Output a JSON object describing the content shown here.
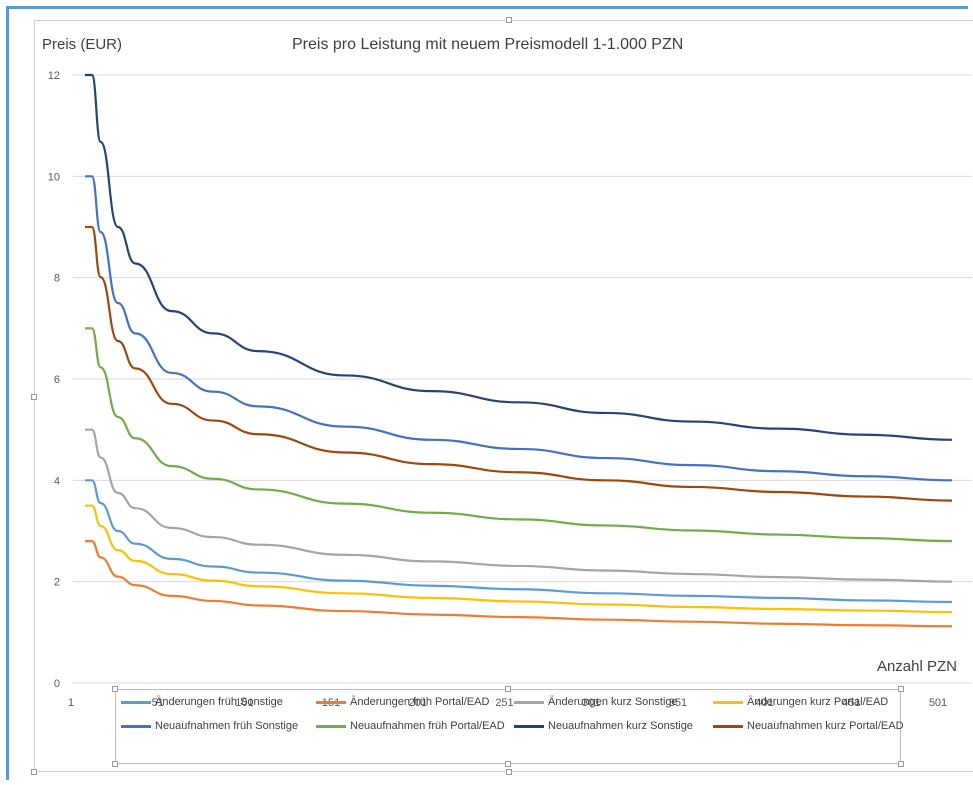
{
  "chart_data": {
    "type": "line",
    "title": "Preis pro Leistung mit neuem Preismodell 1-1.000 PZN",
    "ylabel": "Preis (EUR)",
    "xlabel": "Anzahl PZN",
    "xlim": [
      1,
      501
    ],
    "ylim": [
      0,
      12
    ],
    "x_ticks": [
      "1",
      "51",
      "101",
      "151",
      "201",
      "251",
      "301",
      "351",
      "401",
      "451",
      "501"
    ],
    "y_ticks": [
      "0",
      "2",
      "4",
      "6",
      "8",
      "10",
      "12"
    ],
    "grid": "horizontal",
    "legend_position": "bottom",
    "x": [
      1,
      5,
      10,
      20,
      30,
      51,
      75,
      101,
      151,
      201,
      251,
      301,
      351,
      401,
      451,
      501
    ],
    "series": [
      {
        "name": "Änderungen früh Sonstige",
        "color": "#5b9bd5",
        "values": [
          4.0,
          4.0,
          3.55,
          3.0,
          2.75,
          2.45,
          2.3,
          2.18,
          2.02,
          1.92,
          1.85,
          1.77,
          1.72,
          1.68,
          1.63,
          1.6
        ]
      },
      {
        "name": "Änderungen früh Portal/EAD",
        "color": "#ed7d31",
        "values": [
          2.8,
          2.8,
          2.48,
          2.1,
          1.93,
          1.72,
          1.62,
          1.53,
          1.42,
          1.35,
          1.3,
          1.25,
          1.21,
          1.17,
          1.14,
          1.12
        ]
      },
      {
        "name": "Änderungen kurz Sonstige",
        "color": "#a5a5a5",
        "values": [
          5.0,
          5.0,
          4.45,
          3.75,
          3.45,
          3.06,
          2.88,
          2.73,
          2.53,
          2.4,
          2.31,
          2.22,
          2.15,
          2.09,
          2.04,
          2.0
        ]
      },
      {
        "name": "Änderungen kurz Portal/EAD",
        "color": "#ffc000",
        "values": [
          3.5,
          3.5,
          3.1,
          2.62,
          2.41,
          2.15,
          2.02,
          1.91,
          1.77,
          1.68,
          1.61,
          1.55,
          1.5,
          1.46,
          1.43,
          1.4
        ]
      },
      {
        "name": "Neuaufnahmen früh Sonstige",
        "color": "#4472c4",
        "values": [
          10.0,
          10.0,
          8.9,
          7.5,
          6.9,
          6.12,
          5.75,
          5.46,
          5.06,
          4.8,
          4.62,
          4.44,
          4.3,
          4.18,
          4.08,
          4.0
        ]
      },
      {
        "name": "Neuaufnahmen früh Portal/EAD",
        "color": "#70ad47",
        "values": [
          7.0,
          7.0,
          6.23,
          5.25,
          4.83,
          4.28,
          4.03,
          3.82,
          3.54,
          3.36,
          3.23,
          3.11,
          3.01,
          2.93,
          2.86,
          2.8
        ]
      },
      {
        "name": "Neuaufnahmen kurz Sonstige",
        "color": "#264478",
        "values": [
          12.0,
          12.0,
          10.68,
          9.0,
          8.28,
          7.34,
          6.9,
          6.55,
          6.07,
          5.76,
          5.54,
          5.33,
          5.16,
          5.02,
          4.9,
          4.8
        ]
      },
      {
        "name": "Neuaufnahmen kurz Portal/EAD",
        "color": "#9e480e",
        "values": [
          9.0,
          9.0,
          8.01,
          6.75,
          6.21,
          5.51,
          5.18,
          4.91,
          4.55,
          4.32,
          4.16,
          4.0,
          3.87,
          3.77,
          3.68,
          3.6
        ]
      }
    ]
  }
}
